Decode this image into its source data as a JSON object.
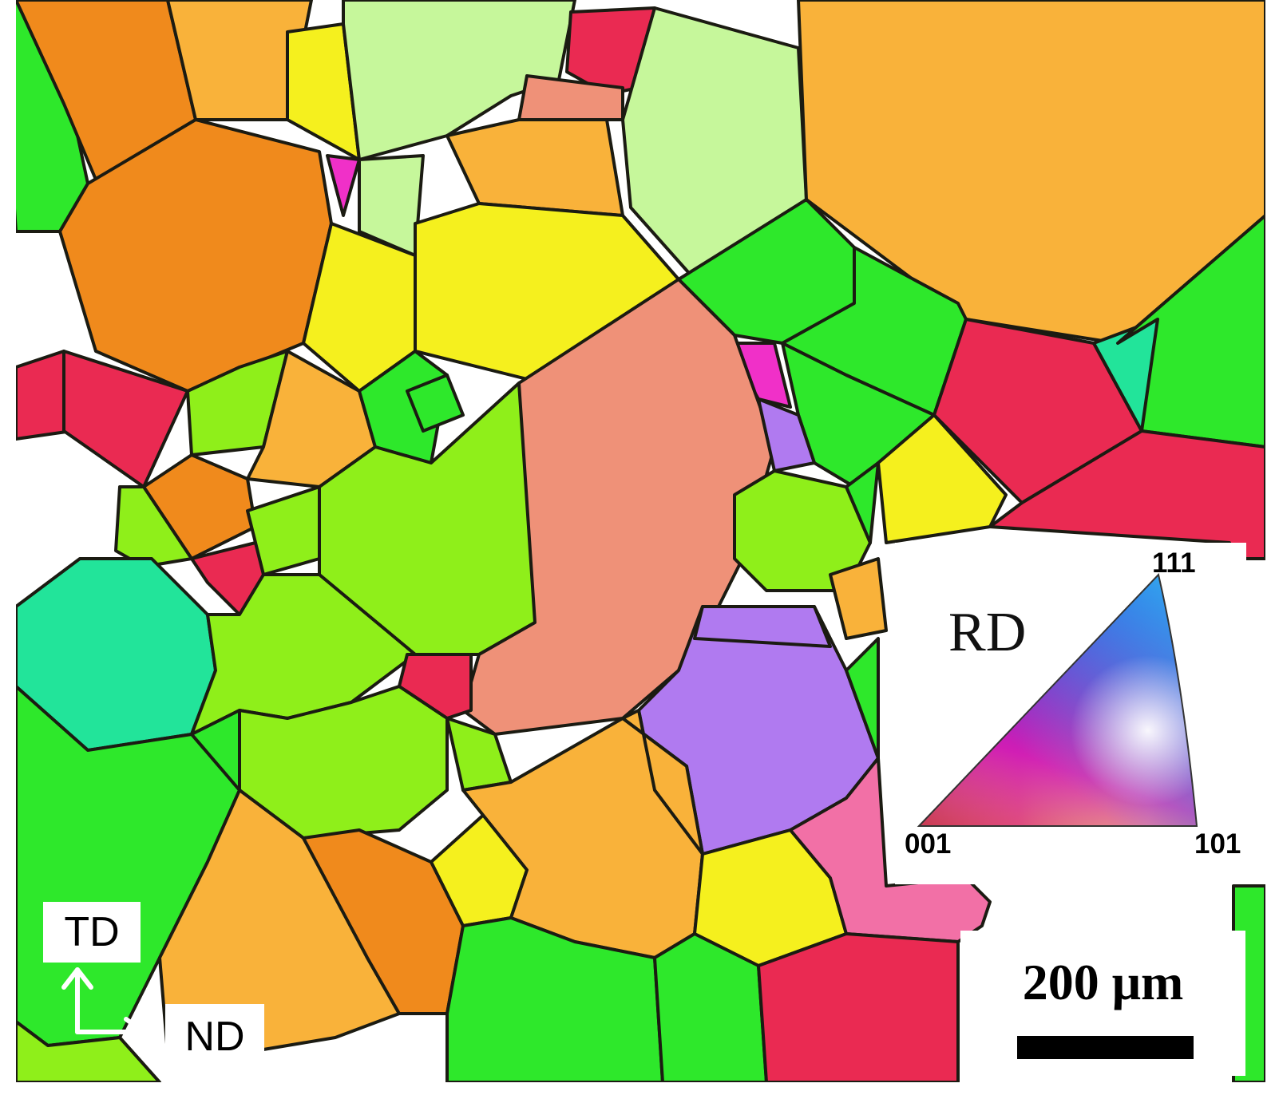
{
  "inverse_pole_figure": {
    "direction_label": "RD",
    "corners": {
      "lower_left": "001",
      "lower_right": "101",
      "top": "111"
    }
  },
  "sample_axes": {
    "vertical": "TD",
    "horizontal": "ND"
  },
  "scale_bar": {
    "label": "200 μm"
  },
  "colors": {
    "grain_boundary": "#1b1b12",
    "orange": "#f08a1c",
    "light_orange": "#f9b23a",
    "green": "#2ee82b",
    "lime": "#8fef1a",
    "pale_green": "#c6f79b",
    "yellow": "#f5f01e",
    "red_pink": "#ea2a52",
    "salmon": "#ef9178",
    "purple": "#b07af0",
    "magenta": "#f030c8",
    "cyan_green": "#22e49a",
    "pink": "#f270a6"
  }
}
